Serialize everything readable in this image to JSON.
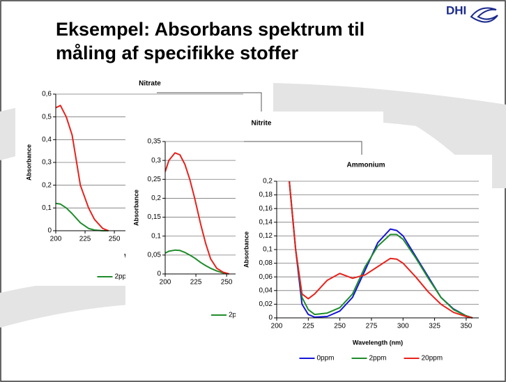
{
  "slide": {
    "title": [
      "Eksempel: Absorbans spektrum til",
      "måling af specifikke stoffer"
    ],
    "logo": "DHI"
  },
  "chart_data": [
    {
      "type": "line",
      "title": "Nitrate",
      "xlabel": "Wavelength (nm)",
      "ylabel": "Absorbance",
      "x": [
        200,
        204,
        209,
        214,
        221,
        228,
        233,
        240,
        245
      ],
      "series": [
        {
          "name": "2ppm",
          "color": "#1e8c2a",
          "values": [
            0.12,
            0.117,
            0.1,
            0.075,
            0.035,
            0.01,
            0.003,
            0,
            0
          ]
        },
        {
          "name": "20ppm",
          "color": "#e8211b",
          "values": [
            0.54,
            0.55,
            0.5,
            0.42,
            0.2,
            0.1,
            0.05,
            0.01,
            0
          ]
        }
      ],
      "xlim": [
        200,
        360
      ],
      "xticks": [
        200,
        225,
        250,
        275,
        300,
        325,
        350
      ],
      "ylim": [
        0,
        0.6
      ],
      "yticks": [
        0,
        {
          "value": 0.1,
          "label": "0,1"
        },
        {
          "value": 0.2,
          "label": "0,2"
        },
        {
          "value": 0.3,
          "label": "0,3"
        },
        {
          "value": 0.4,
          "label": "0,4"
        },
        {
          "value": 0.5,
          "label": "0,5"
        },
        {
          "value": 0.6,
          "label": "0,6"
        }
      ],
      "grid": true
    },
    {
      "type": "line",
      "title": "Nitrite",
      "xlabel": "Wavelength (nm)",
      "ylabel": "Absorbance",
      "x": [
        200,
        203,
        208,
        212,
        216,
        220,
        224,
        229,
        233,
        237,
        242,
        247,
        252
      ],
      "series": [
        {
          "name": "2ppm",
          "color": "#1e8c2a",
          "values": [
            0.055,
            0.06,
            0.063,
            0.062,
            0.057,
            0.05,
            0.042,
            0.03,
            0.022,
            0.015,
            0.008,
            0.003,
            0
          ]
        },
        {
          "name": "20ppm",
          "color": "#e8211b",
          "values": [
            0.27,
            0.3,
            0.32,
            0.315,
            0.29,
            0.25,
            0.2,
            0.13,
            0.08,
            0.04,
            0.015,
            0.005,
            0
          ]
        }
      ],
      "xlim": [
        200,
        360
      ],
      "xticks": [
        200,
        225,
        250,
        275,
        300,
        325,
        350
      ],
      "ylim": [
        0,
        0.35
      ],
      "yticks": [
        0,
        {
          "value": 0.05,
          "label": "0,05"
        },
        {
          "value": 0.1,
          "label": "0,1"
        },
        {
          "value": 0.15,
          "label": "0,15"
        },
        {
          "value": 0.2,
          "label": "0,2"
        },
        {
          "value": 0.25,
          "label": "0,25"
        },
        {
          "value": 0.3,
          "label": "0,3"
        },
        {
          "value": 0.35,
          "label": "0,35"
        }
      ],
      "grid": true
    },
    {
      "type": "line",
      "title": "Ammonium",
      "xlabel": "Wavelength (nm)",
      "ylabel": "Absorbance",
      "x": [
        210,
        215,
        220,
        225,
        230,
        240,
        250,
        260,
        270,
        280,
        290,
        295,
        300,
        310,
        320,
        330,
        340,
        350,
        355
      ],
      "series": [
        {
          "name": "0ppm",
          "color": "#1515d8",
          "values": [
            0.2,
            0.1,
            0.02,
            0.005,
            0.001,
            0.002,
            0.01,
            0.03,
            0.07,
            0.11,
            0.13,
            0.128,
            0.12,
            0.09,
            0.06,
            0.03,
            0.013,
            0.003,
            0
          ]
        },
        {
          "name": "2ppm",
          "color": "#1e8c2a",
          "values": [
            0.2,
            0.1,
            0.03,
            0.012,
            0.005,
            0.007,
            0.015,
            0.035,
            0.075,
            0.105,
            0.122,
            0.122,
            0.115,
            0.088,
            0.058,
            0.03,
            0.012,
            0.003,
            0
          ]
        },
        {
          "name": "20ppm",
          "color": "#e8211b",
          "values": [
            0.2,
            0.1,
            0.035,
            0.028,
            0.035,
            0.055,
            0.065,
            0.058,
            0.063,
            0.075,
            0.087,
            0.086,
            0.08,
            0.06,
            0.038,
            0.02,
            0.008,
            0.002,
            0
          ]
        }
      ],
      "xlim": [
        200,
        360
      ],
      "xticks": [
        200,
        225,
        250,
        275,
        300,
        325,
        350
      ],
      "ylim": [
        0,
        0.2
      ],
      "yticks": [
        0,
        {
          "value": 0.02,
          "label": "0,02"
        },
        {
          "value": 0.04,
          "label": "0,04"
        },
        {
          "value": 0.06,
          "label": "0,06"
        },
        {
          "value": 0.08,
          "label": "0,08"
        },
        {
          "value": 0.1,
          "label": "0,1"
        },
        {
          "value": 0.12,
          "label": "0,12"
        },
        {
          "value": 0.14,
          "label": "0,14"
        },
        {
          "value": 0.16,
          "label": "0,16"
        },
        {
          "value": 0.18,
          "label": "0,18"
        },
        {
          "value": 0.2,
          "label": "0,2"
        }
      ],
      "grid": true
    }
  ]
}
